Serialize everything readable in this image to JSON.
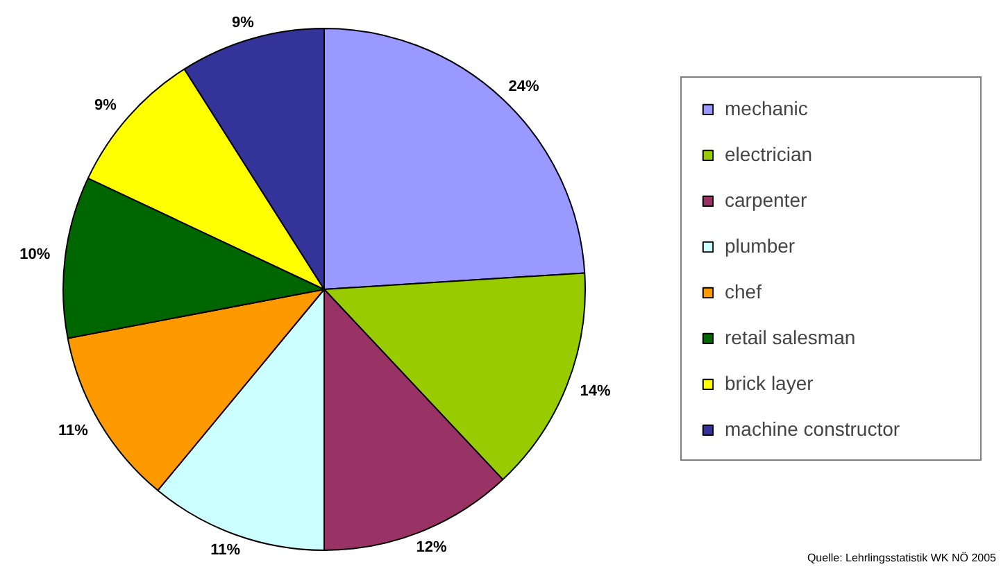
{
  "chart_data": {
    "type": "pie",
    "categories": [
      "mechanic",
      "electrician",
      "carpenter",
      "plumber",
      "chef",
      "retail salesman",
      "brick layer",
      "machine constructor"
    ],
    "values": [
      24,
      14,
      12,
      11,
      11,
      10,
      9,
      9
    ],
    "value_labels": [
      "24%",
      "14%",
      "12%",
      "11%",
      "11%",
      "10%",
      "9%",
      "9%"
    ],
    "colors": [
      "#9999ff",
      "#99cc00",
      "#993366",
      "#ccffff",
      "#ff9900",
      "#006600",
      "#ffff00",
      "#333399"
    ],
    "legend": "right",
    "annotations": [
      "Quelle: Lehrlingsstatistik WK NÖ 2005"
    ]
  }
}
